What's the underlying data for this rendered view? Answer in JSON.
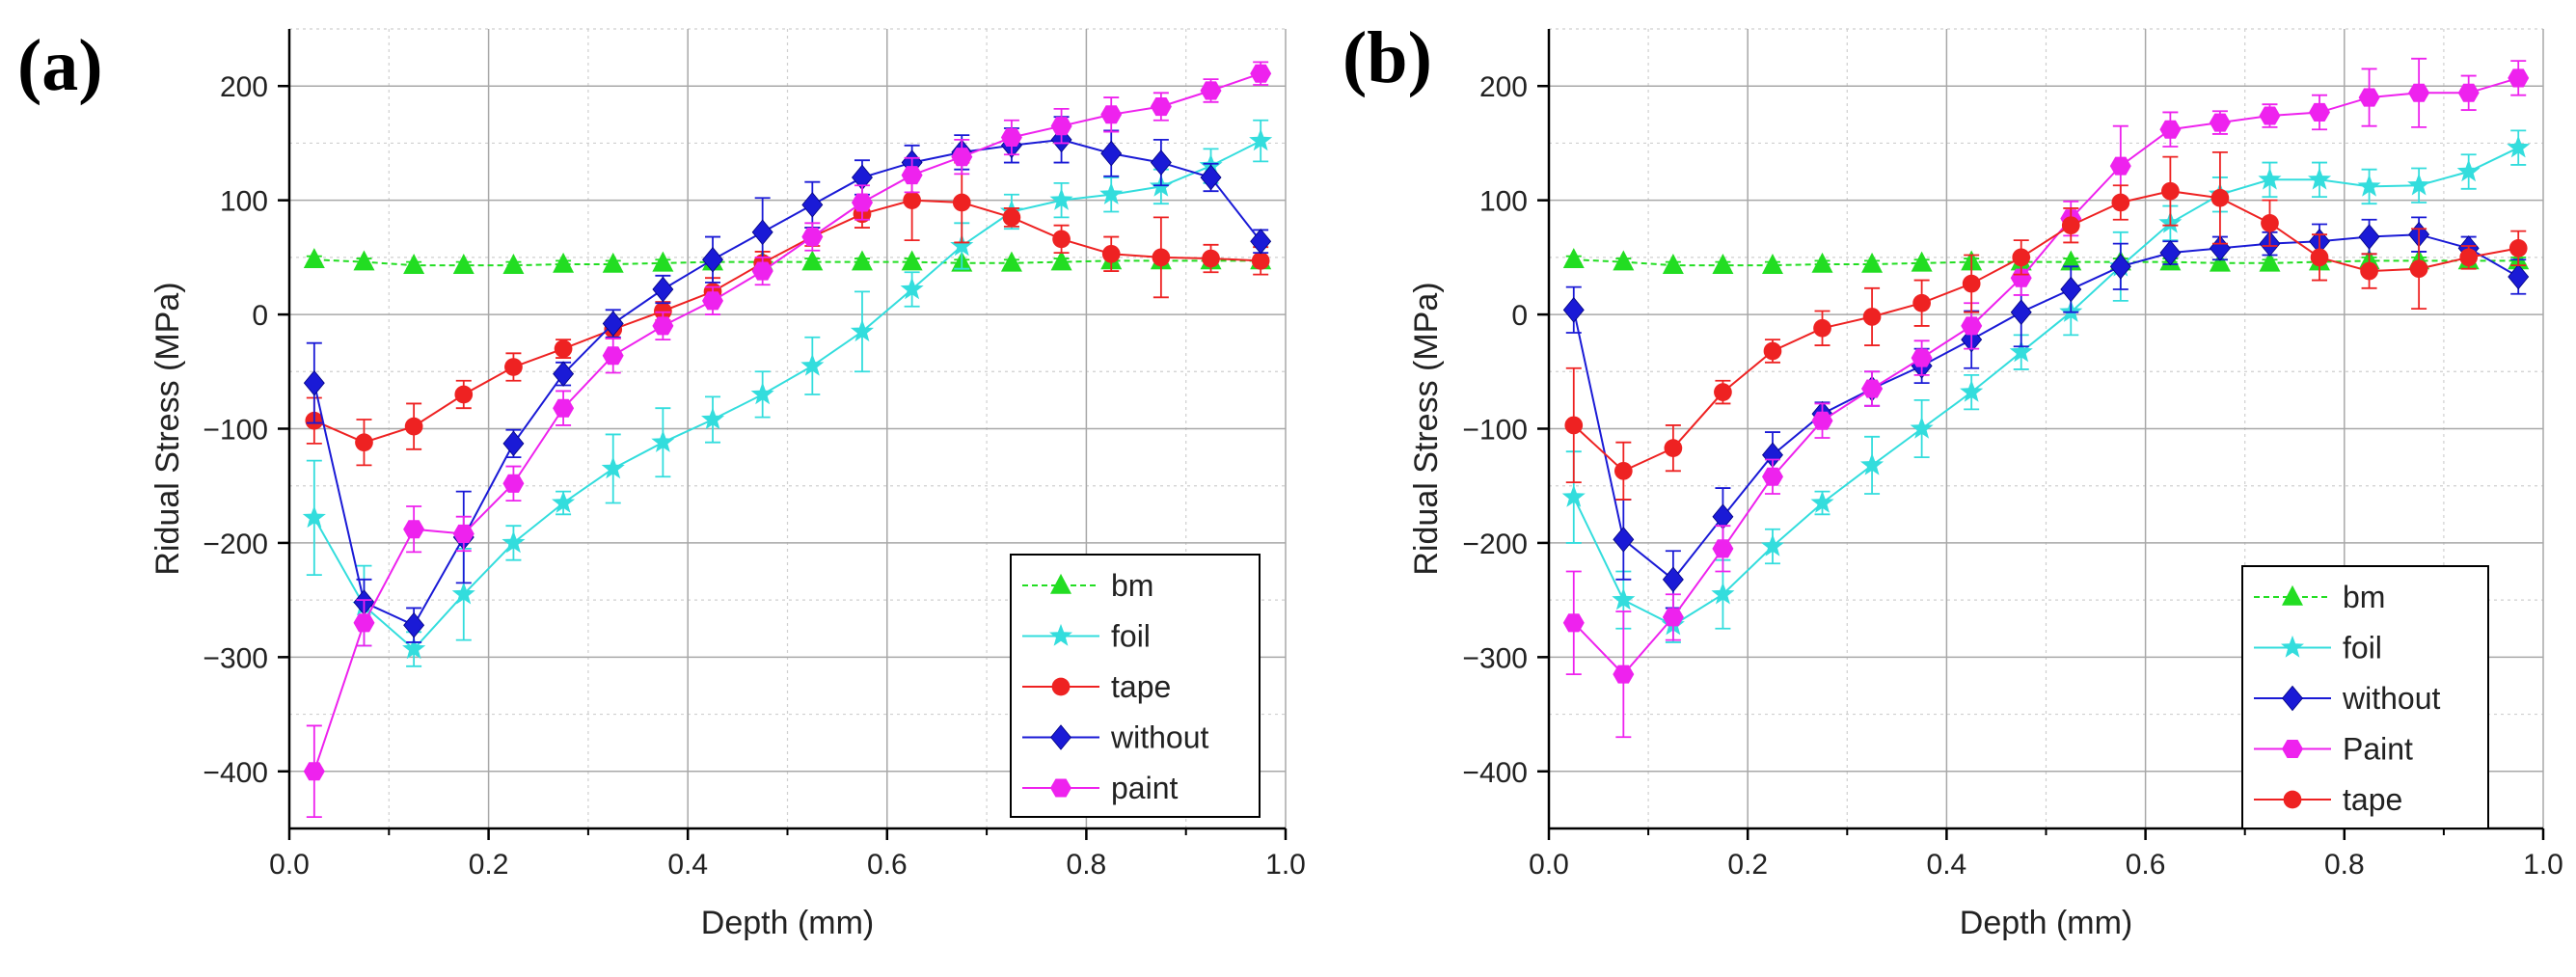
{
  "chart_data": [
    {
      "type": "line",
      "panel_label": "(a)",
      "xlabel": "Depth (mm)",
      "ylabel": "Ridual Stress (MPa)",
      "xlim": [
        0.0,
        1.0
      ],
      "ylim": [
        -450,
        250
      ],
      "xticks": [
        0.0,
        0.2,
        0.4,
        0.6,
        0.8,
        1.0
      ],
      "xtick_labels": [
        "0.0",
        "0.2",
        "0.4",
        "0.6",
        "0.8",
        "1.0"
      ],
      "yticks": [
        -400,
        -300,
        -200,
        -100,
        0,
        100,
        200
      ],
      "ytick_labels": [
        "−400",
        "−300",
        "−200",
        "−100",
        "0",
        "100",
        "200"
      ],
      "grid": true,
      "legend_position": "bottom-right",
      "x": [
        0.025,
        0.075,
        0.125,
        0.175,
        0.225,
        0.275,
        0.325,
        0.375,
        0.425,
        0.475,
        0.525,
        0.575,
        0.625,
        0.675,
        0.725,
        0.775,
        0.825,
        0.875,
        0.925,
        0.975
      ],
      "series": [
        {
          "name": "bm",
          "color": "#22dd22",
          "marker": "triangle",
          "values": [
            48,
            46,
            43,
            43,
            43,
            44,
            44,
            45,
            46,
            46,
            46,
            46,
            46,
            45,
            45,
            46,
            47,
            47,
            47,
            47
          ],
          "errors": [
            3,
            3,
            3,
            3,
            3,
            3,
            3,
            3,
            3,
            3,
            3,
            3,
            3,
            3,
            3,
            3,
            3,
            3,
            3,
            3
          ]
        },
        {
          "name": "foil",
          "color": "#33dddd",
          "marker": "star",
          "values": [
            -178,
            -255,
            -293,
            -245,
            -200,
            -165,
            -135,
            -112,
            -92,
            -70,
            -45,
            -15,
            22,
            60,
            90,
            100,
            105,
            112,
            130,
            152
          ],
          "errors": [
            50,
            35,
            15,
            40,
            15,
            10,
            30,
            30,
            20,
            20,
            25,
            35,
            15,
            20,
            15,
            15,
            15,
            15,
            15,
            18
          ]
        },
        {
          "name": "tape",
          "color": "#ee2222",
          "marker": "circle",
          "values": [
            -93,
            -112,
            -98,
            -70,
            -46,
            -30,
            -13,
            3,
            20,
            45,
            68,
            88,
            100,
            98,
            85,
            66,
            53,
            50,
            49,
            47
          ],
          "errors": [
            20,
            20,
            20,
            12,
            12,
            8,
            8,
            8,
            12,
            10,
            8,
            12,
            35,
            35,
            8,
            12,
            15,
            35,
            12,
            12
          ]
        },
        {
          "name": "without",
          "color": "#1a1ad6",
          "marker": "diamond",
          "values": [
            -60,
            -252,
            -272,
            -195,
            -113,
            -52,
            -8,
            22,
            48,
            72,
            96,
            120,
            133,
            142,
            148,
            153,
            141,
            133,
            120,
            64
          ],
          "errors": [
            35,
            20,
            15,
            40,
            12,
            10,
            12,
            12,
            20,
            30,
            20,
            15,
            15,
            15,
            15,
            20,
            20,
            20,
            12,
            10
          ]
        },
        {
          "name": "paint",
          "color": "#ee22ee",
          "marker": "hexagon",
          "values": [
            -400,
            -270,
            -188,
            -192,
            -148,
            -82,
            -36,
            -10,
            12,
            38,
            68,
            98,
            122,
            138,
            155,
            165,
            175,
            182,
            196,
            211
          ],
          "errors": [
            40,
            20,
            20,
            15,
            15,
            15,
            15,
            12,
            12,
            12,
            12,
            15,
            15,
            15,
            15,
            15,
            15,
            12,
            10,
            10
          ]
        }
      ]
    },
    {
      "type": "line",
      "panel_label": "(b)",
      "xlabel": "Depth (mm)",
      "ylabel": "Ridual Stress (MPa)",
      "xlim": [
        0.0,
        1.0
      ],
      "ylim": [
        -450,
        250
      ],
      "xticks": [
        0.0,
        0.2,
        0.4,
        0.6,
        0.8,
        1.0
      ],
      "xtick_labels": [
        "0.0",
        "0.2",
        "0.4",
        "0.6",
        "0.8",
        "1.0"
      ],
      "yticks": [
        -400,
        -300,
        -200,
        -100,
        0,
        100,
        200
      ],
      "ytick_labels": [
        "−400",
        "−300",
        "−200",
        "−100",
        "0",
        "100",
        "200"
      ],
      "grid": true,
      "legend_position": "bottom-right",
      "x": [
        0.025,
        0.075,
        0.125,
        0.175,
        0.225,
        0.275,
        0.325,
        0.375,
        0.425,
        0.475,
        0.525,
        0.575,
        0.625,
        0.675,
        0.725,
        0.775,
        0.825,
        0.875,
        0.925,
        0.975
      ],
      "series": [
        {
          "name": "bm",
          "color": "#22dd22",
          "marker": "triangle",
          "values": [
            48,
            46,
            43,
            43,
            43,
            44,
            44,
            45,
            46,
            46,
            46,
            46,
            46,
            45,
            45,
            46,
            47,
            47,
            47,
            47
          ],
          "errors": [
            3,
            3,
            3,
            3,
            3,
            3,
            3,
            3,
            3,
            3,
            3,
            3,
            3,
            3,
            3,
            3,
            3,
            3,
            3,
            3
          ]
        },
        {
          "name": "foil",
          "color": "#33dddd",
          "marker": "star",
          "values": [
            -160,
            -250,
            -272,
            -245,
            -203,
            -165,
            -132,
            -100,
            -68,
            -33,
            2,
            42,
            80,
            105,
            118,
            118,
            112,
            113,
            125,
            146
          ],
          "errors": [
            40,
            25,
            15,
            30,
            15,
            10,
            25,
            25,
            15,
            15,
            20,
            30,
            15,
            15,
            15,
            15,
            15,
            15,
            15,
            15
          ]
        },
        {
          "name": "without",
          "color": "#1a1ad6",
          "marker": "diamond",
          "values": [
            4,
            -197,
            -232,
            -177,
            -123,
            -87,
            -65,
            -45,
            -22,
            2,
            22,
            42,
            54,
            58,
            62,
            64,
            68,
            70,
            58,
            33
          ],
          "errors": [
            20,
            35,
            25,
            25,
            20,
            10,
            15,
            15,
            25,
            30,
            20,
            20,
            10,
            10,
            10,
            15,
            15,
            15,
            10,
            15
          ]
        },
        {
          "name": "Paint",
          "color": "#ee22ee",
          "marker": "hexagon",
          "values": [
            -270,
            -315,
            -265,
            -205,
            -142,
            -93,
            -65,
            -38,
            -10,
            32,
            84,
            130,
            162,
            168,
            174,
            177,
            190,
            194,
            194,
            207
          ],
          "errors": [
            45,
            55,
            20,
            20,
            15,
            15,
            15,
            15,
            20,
            15,
            15,
            35,
            15,
            10,
            10,
            15,
            25,
            30,
            15,
            15
          ]
        },
        {
          "name": "tape",
          "color": "#ee2222",
          "marker": "circle",
          "values": [
            -97,
            -137,
            -117,
            -68,
            -32,
            -12,
            -2,
            10,
            27,
            50,
            78,
            98,
            108,
            102,
            80,
            50,
            38,
            40,
            50,
            58
          ],
          "errors": [
            50,
            25,
            20,
            10,
            10,
            15,
            25,
            20,
            25,
            15,
            15,
            15,
            30,
            40,
            20,
            20,
            15,
            35,
            10,
            15
          ]
        }
      ]
    }
  ]
}
